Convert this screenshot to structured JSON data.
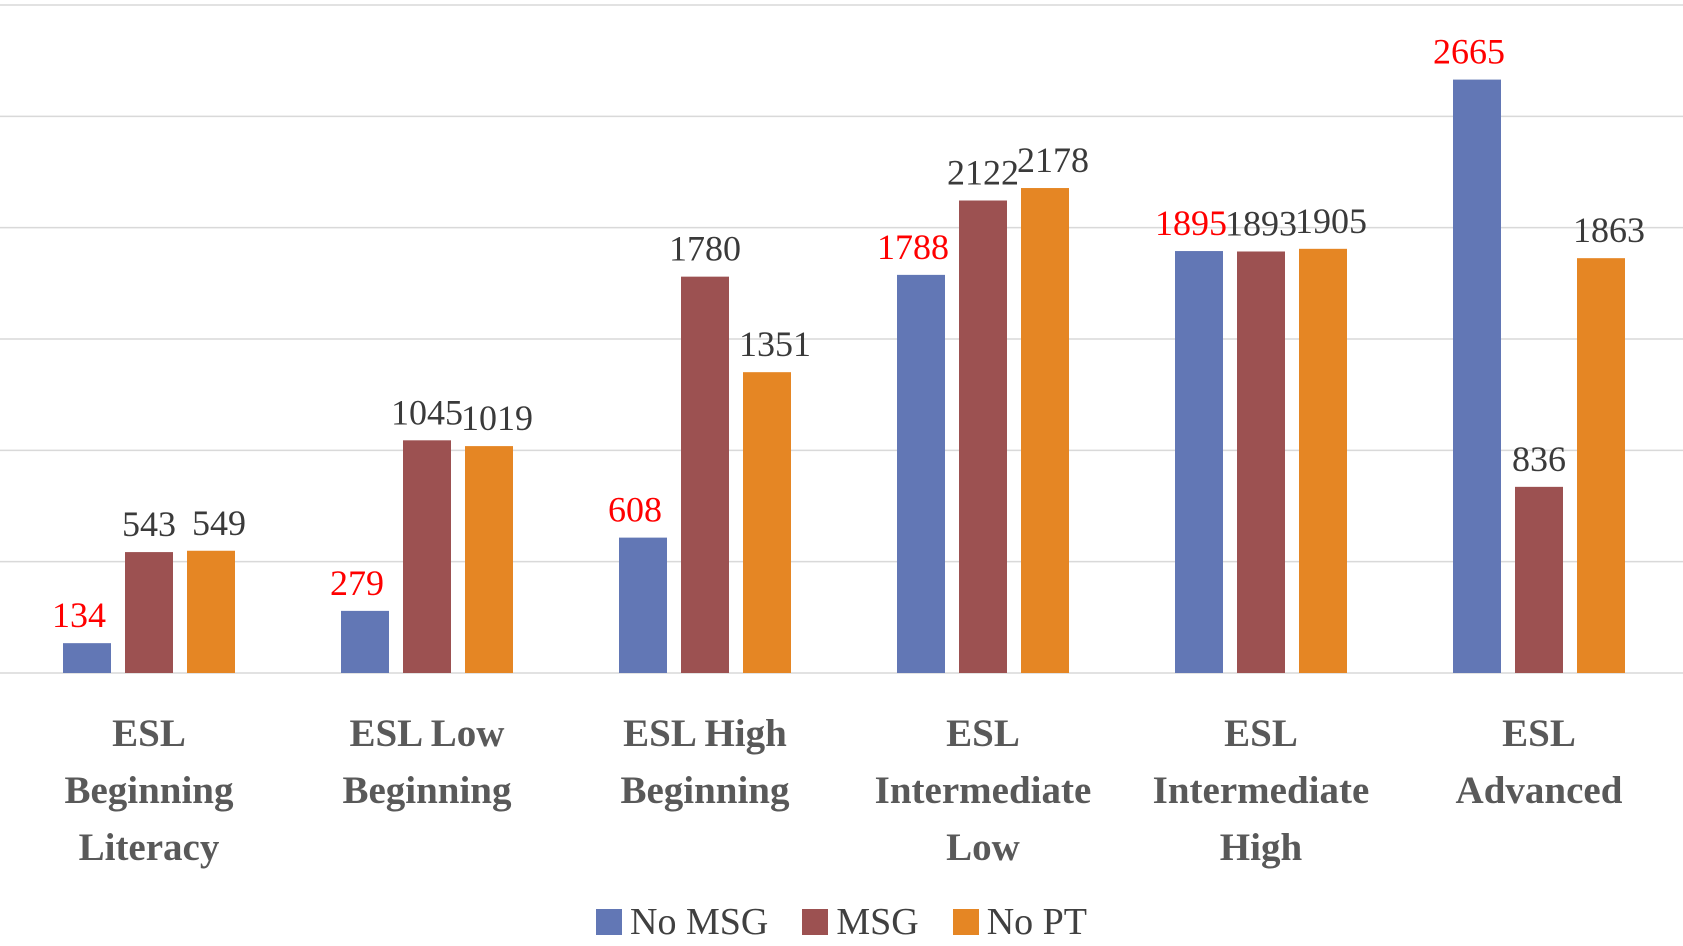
{
  "chart_data": {
    "type": "bar",
    "categories": [
      "ESL Beginning Literacy",
      "ESL Low Beginning",
      "ESL High Beginning",
      "ESL Intermediate Low",
      "ESL Intermediate High",
      "ESL Advanced"
    ],
    "series": [
      {
        "name": "No MSG",
        "color": "#6277b5",
        "label_color": "#ff0000",
        "values": [
          134,
          279,
          608,
          1788,
          1895,
          2665
        ]
      },
      {
        "name": "MSG",
        "color": "#9c5151",
        "label_color": "#3a3a3a",
        "values": [
          543,
          1045,
          1780,
          2122,
          1893,
          836
        ]
      },
      {
        "name": "No PT",
        "color": "#e58624",
        "label_color": "#3a3a3a",
        "values": [
          549,
          1019,
          1351,
          2178,
          1905,
          1863
        ]
      }
    ],
    "ylim": [
      0,
      3000
    ],
    "yticks": [
      0,
      500,
      1000,
      1500,
      2000,
      2500,
      3000
    ],
    "grid": true,
    "legend": "bottom"
  }
}
